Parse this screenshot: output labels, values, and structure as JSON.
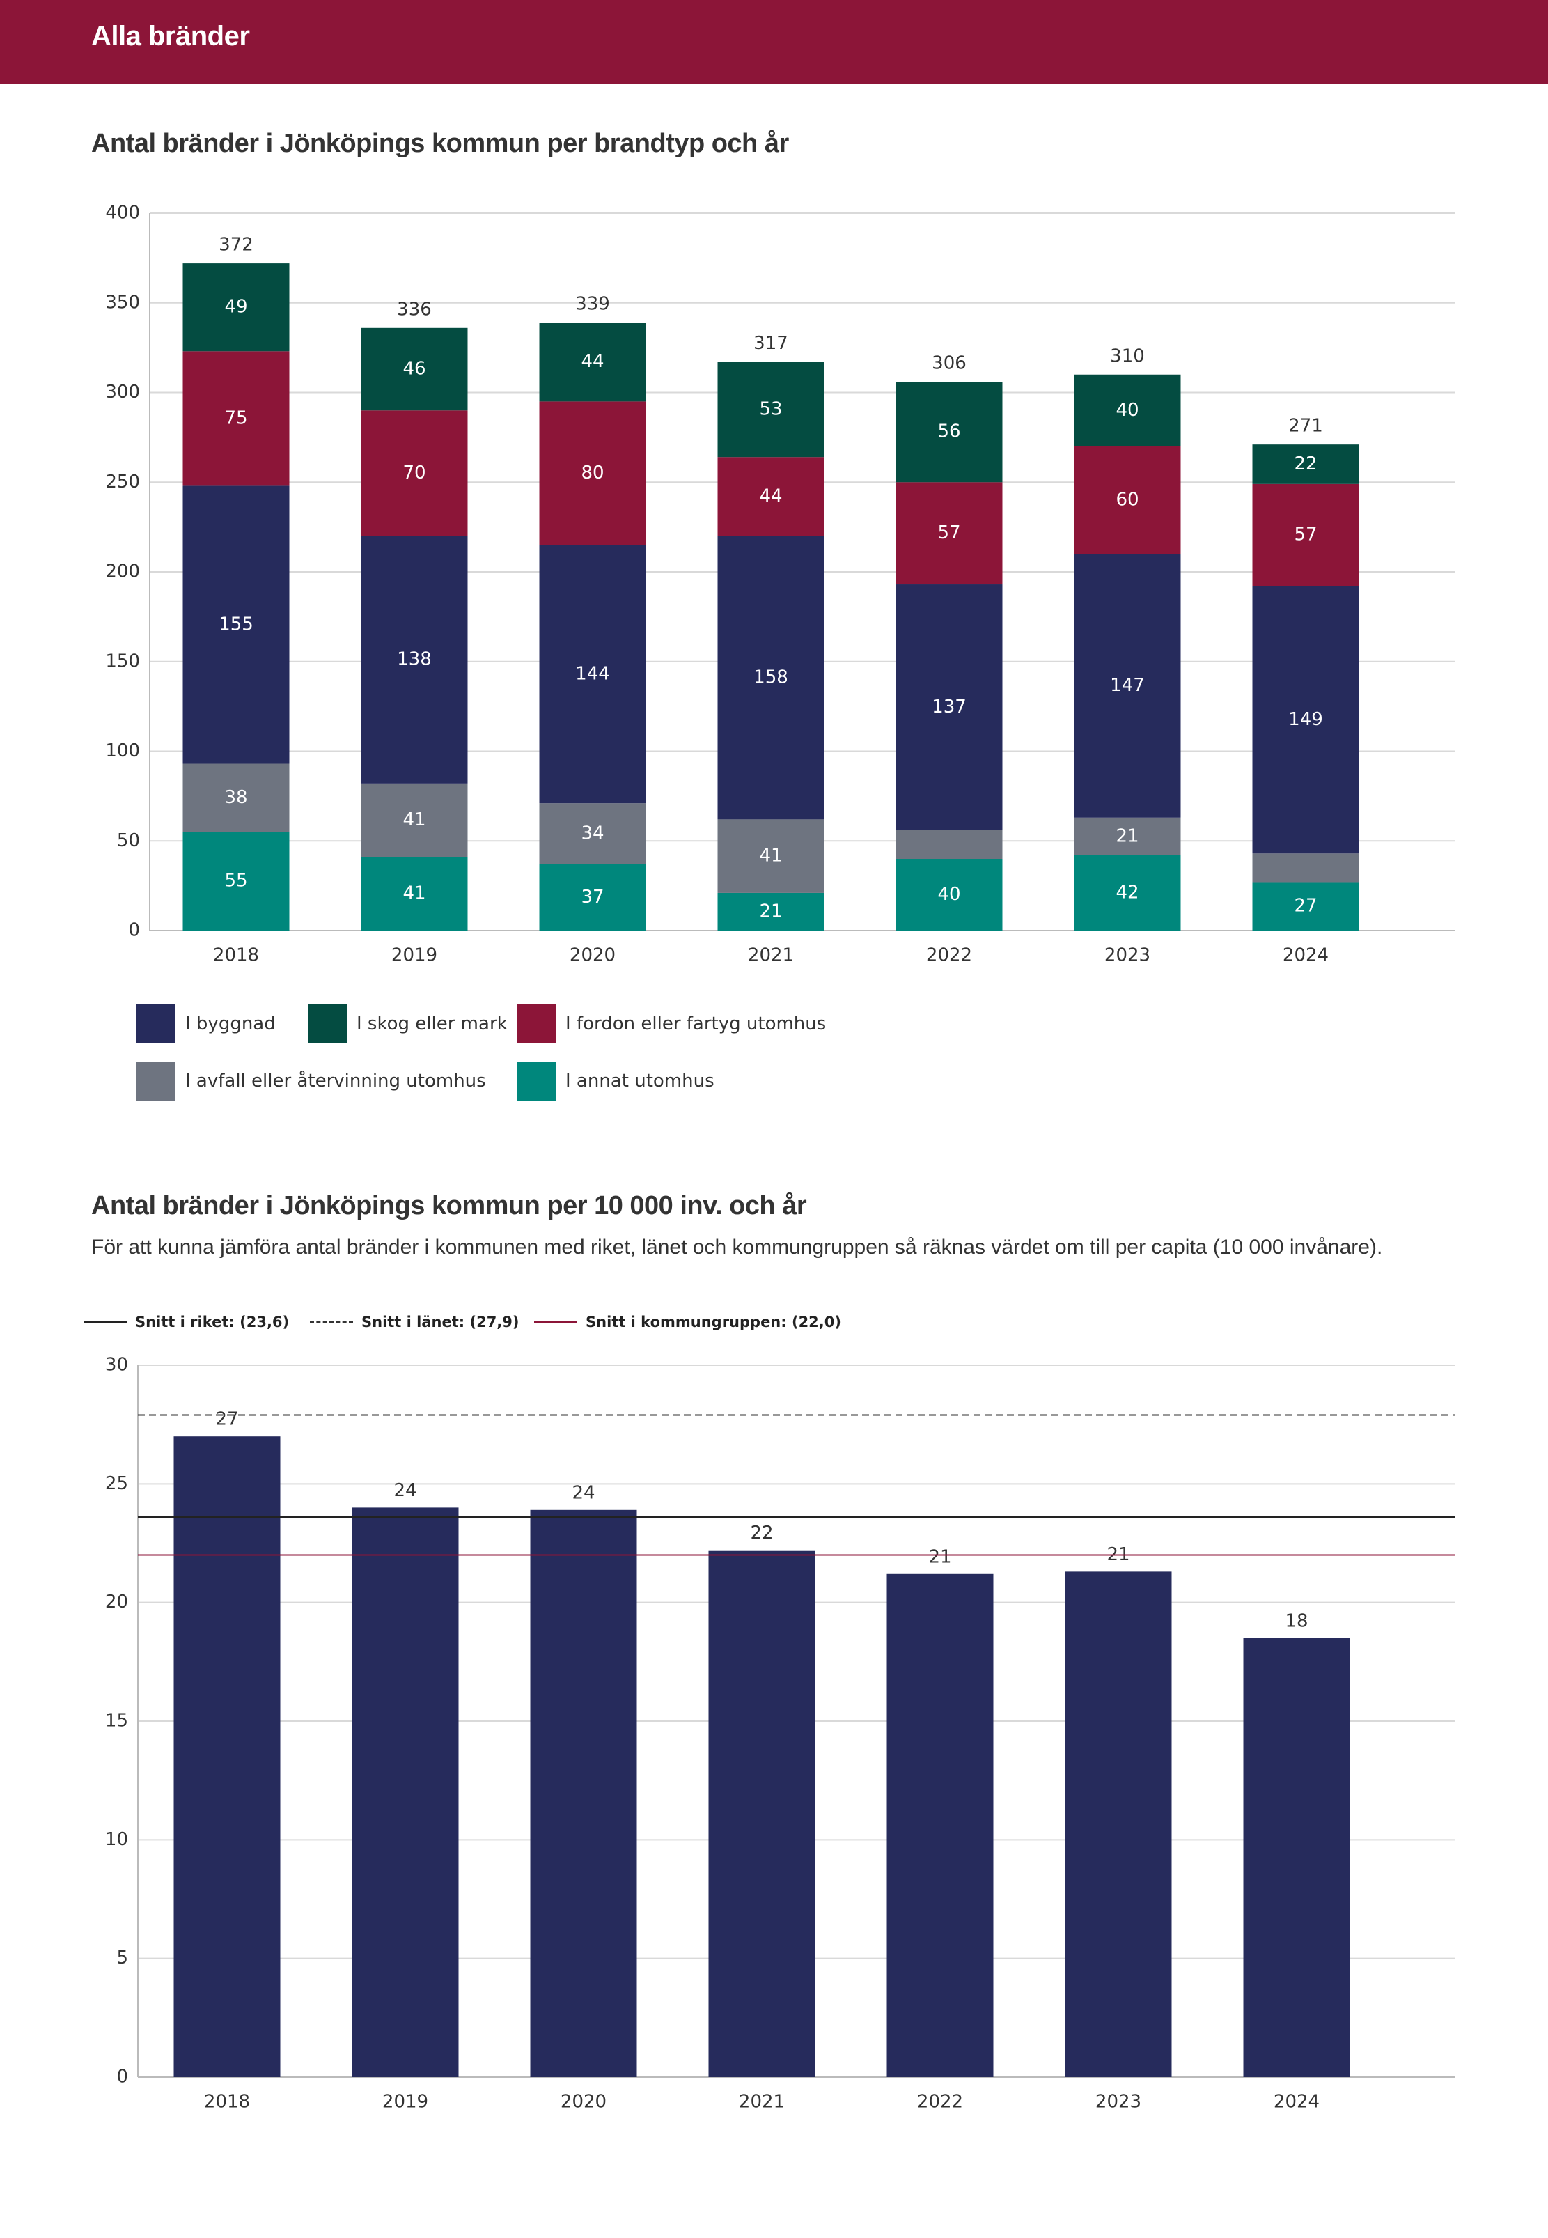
{
  "header": {
    "title": "Alla bränder"
  },
  "section1": {
    "title": "Antal bränder i Jönköpings kommun per brandtyp och år"
  },
  "section2": {
    "title": "Antal bränder i Jönköpings kommun per 10 000 inv. och år",
    "description": "För att kunna jämföra antal bränder i kommunen med riket, länet och kommungruppen så räknas värdet om till per capita (10 000 invånare)."
  },
  "colors": {
    "byggnad": "#262b5c",
    "skog": "#044c41",
    "fordon": "#8c1538",
    "avfall": "#6e7480",
    "annat": "#00877c",
    "riket": "#222222",
    "lanet": "#333333",
    "kommungrupp": "#8c1538"
  },
  "chart_data": [
    {
      "type": "bar",
      "stacked": true,
      "title": "Antal bränder i Jönköpings kommun per brandtyp och år",
      "categories": [
        "2018",
        "2019",
        "2020",
        "2021",
        "2022",
        "2023",
        "2024"
      ],
      "ylim": [
        0,
        400
      ],
      "yticks": [
        0,
        50,
        100,
        150,
        200,
        250,
        300,
        350,
        400
      ],
      "grid": true,
      "legend_position": "bottom",
      "series": [
        {
          "name": "I annat utomhus",
          "key": "annat",
          "values": [
            55,
            41,
            37,
            21,
            40,
            42,
            27
          ],
          "labels": [
            "55",
            "41",
            "37",
            "21",
            "40",
            "42",
            "27"
          ]
        },
        {
          "name": "I avfall eller återvinning utomhus",
          "key": "avfall",
          "values": [
            38,
            41,
            34,
            41,
            16,
            21,
            16
          ],
          "labels": [
            "38",
            "41",
            "34",
            "41",
            "",
            "21",
            ""
          ]
        },
        {
          "name": "I byggnad",
          "key": "byggnad",
          "values": [
            155,
            138,
            144,
            158,
            137,
            147,
            149
          ],
          "labels": [
            "155",
            "138",
            "144",
            "158",
            "137",
            "147",
            "149"
          ]
        },
        {
          "name": "I fordon eller fartyg utomhus",
          "key": "fordon",
          "values": [
            75,
            70,
            80,
            44,
            57,
            60,
            57
          ],
          "labels": [
            "75",
            "70",
            "80",
            "44",
            "57",
            "60",
            "57"
          ]
        },
        {
          "name": "I skog eller mark",
          "key": "skog",
          "values": [
            49,
            46,
            44,
            53,
            56,
            40,
            22
          ],
          "labels": [
            "49",
            "46",
            "44",
            "53",
            "56",
            "40",
            "22"
          ]
        }
      ],
      "totals": [
        "372",
        "336",
        "339",
        "317",
        "306",
        "310",
        "271"
      ],
      "legend": [
        {
          "name": "I byggnad",
          "key": "byggnad"
        },
        {
          "name": "I skog eller mark",
          "key": "skog"
        },
        {
          "name": "I fordon eller fartyg utomhus",
          "key": "fordon"
        },
        {
          "name": "I avfall eller återvinning utomhus",
          "key": "avfall"
        },
        {
          "name": "I annat utomhus",
          "key": "annat"
        }
      ]
    },
    {
      "type": "bar",
      "title": "Antal bränder i Jönköpings kommun per 10 000 inv. och år",
      "categories": [
        "2018",
        "2019",
        "2020",
        "2021",
        "2022",
        "2023",
        "2024"
      ],
      "values": [
        27.0,
        24.0,
        23.9,
        22.2,
        21.2,
        21.3,
        18.5
      ],
      "labels": [
        "27",
        "24",
        "24",
        "22",
        "21",
        "21",
        "18"
      ],
      "ylim": [
        0,
        30
      ],
      "yticks": [
        0,
        5,
        10,
        15,
        20,
        25,
        30
      ],
      "grid": true,
      "reference_lines": [
        {
          "name": "Snitt i riket: (23,6)",
          "value": 23.6,
          "style": "solid",
          "key": "riket"
        },
        {
          "name": "Snitt i länet: (27,9)",
          "value": 27.9,
          "style": "dashed",
          "key": "lanet"
        },
        {
          "name": "Snitt i kommungruppen: (22,0)",
          "value": 22.0,
          "style": "solid",
          "key": "kommungrupp"
        }
      ]
    }
  ]
}
